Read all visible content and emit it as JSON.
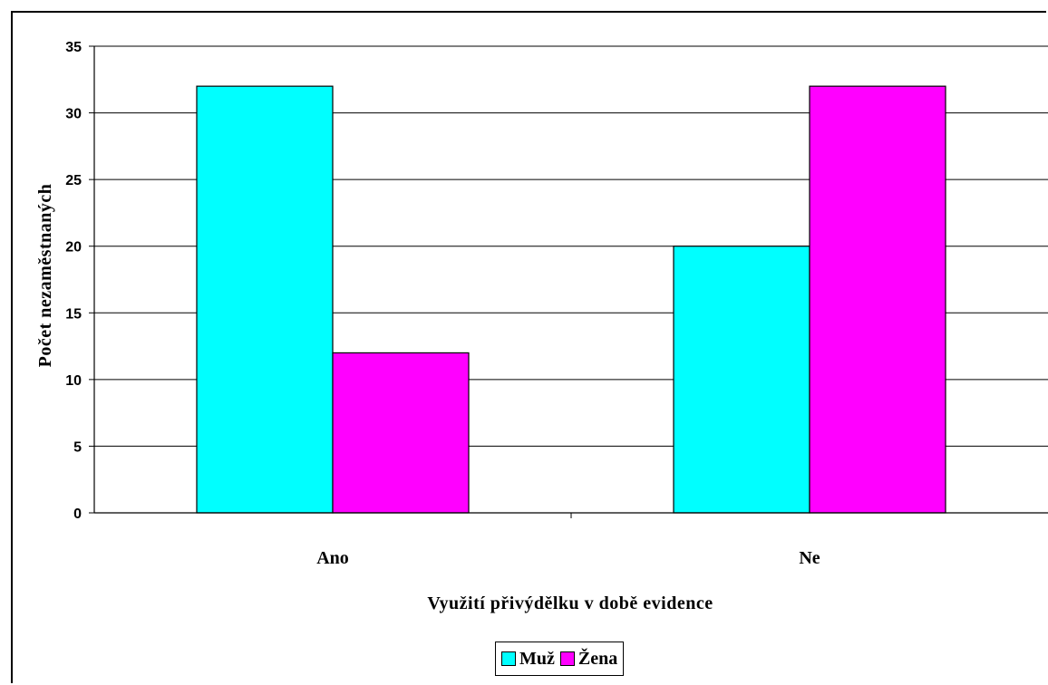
{
  "chart_data": {
    "type": "bar",
    "categories": [
      "Ano",
      "Ne"
    ],
    "series": [
      {
        "name": "Muž",
        "values": [
          32,
          20
        ],
        "color": "#00FFFF"
      },
      {
        "name": "Žena",
        "values": [
          12,
          32
        ],
        "color": "#FF00FF"
      }
    ],
    "xlabel": "Využití přivýdělku v době evidence",
    "ylabel": "Počet nezaměstnaných",
    "ylim": [
      0,
      35
    ],
    "yticks": [
      0,
      5,
      10,
      15,
      20,
      25,
      30,
      35
    ],
    "grid": true,
    "legend_position": "bottom"
  }
}
